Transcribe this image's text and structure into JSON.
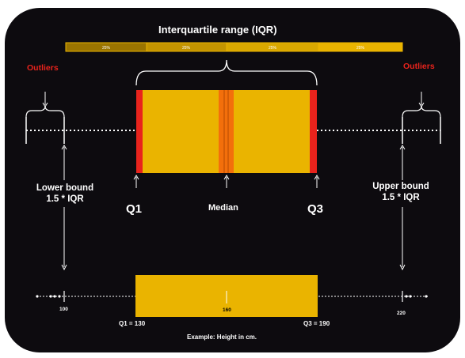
{
  "title": "Interquartile range (IQR)",
  "quartile_strip": {
    "segments": [
      "25%",
      "25%",
      "25%",
      "25%"
    ]
  },
  "labels": {
    "outliers_left": "Outliers",
    "outliers_right": "Outliers",
    "lower_bound_line1": "Lower bound",
    "lower_bound_line2": "1.5 * IQR",
    "upper_bound_line1": "Upper bound",
    "upper_bound_line2": "1.5 * IQR",
    "q1": "Q1",
    "median": "Median",
    "q3": "Q3"
  },
  "example": {
    "lower_value": "100",
    "median_value": "160",
    "upper_value": "220",
    "q1_caption": "Q1 = 130",
    "q3_caption": "Q3 = 190",
    "note": "Example: Height in cm."
  },
  "colors": {
    "background": "#0d0b0f",
    "box": "#eab400",
    "quartile_edge": "#e8231c",
    "median": "#f36f0b",
    "strip": [
      "#9a7400",
      "#c39400",
      "#d9a800",
      "#eab400"
    ]
  }
}
